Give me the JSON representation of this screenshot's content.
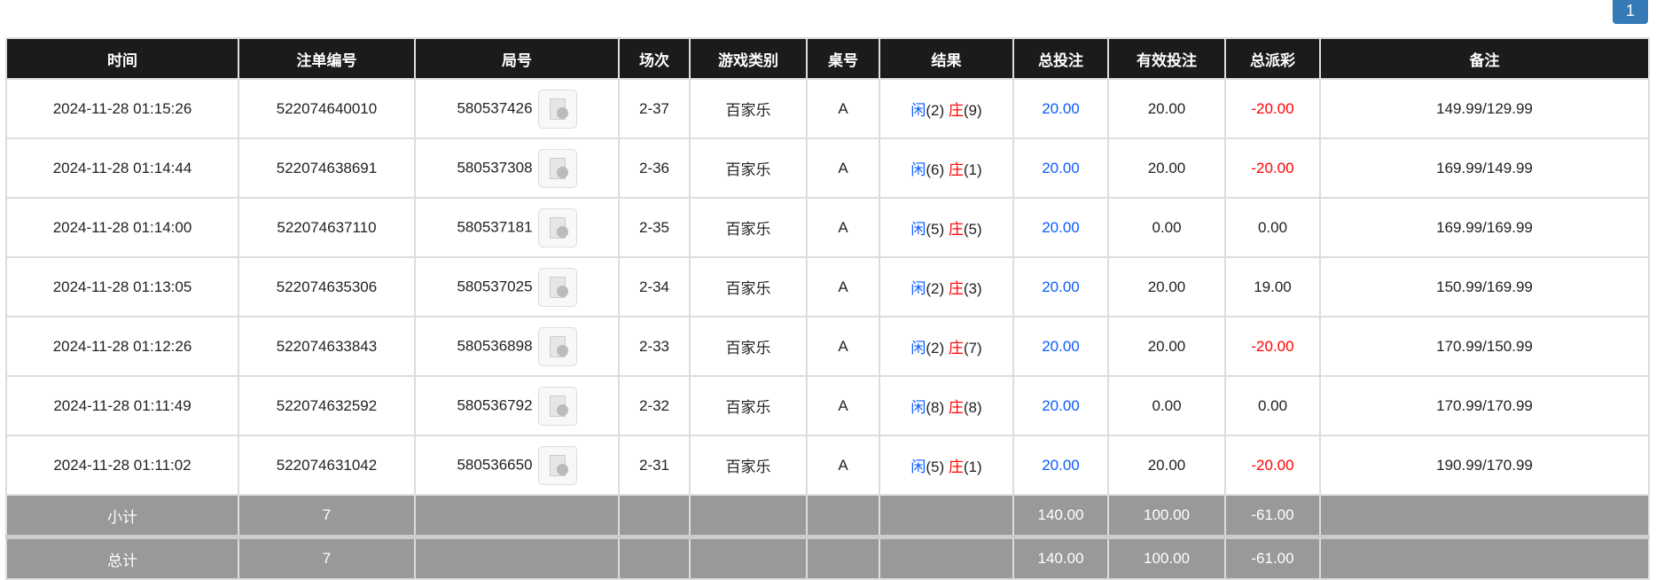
{
  "pagination": {
    "current": "1"
  },
  "columns": [
    "时间",
    "注单编号",
    "局号",
    "场次",
    "游戏类别",
    "桌号",
    "结果",
    "总投注",
    "有效投注",
    "总派彩",
    "备注"
  ],
  "result_labels": {
    "player": "闲",
    "banker": "庄"
  },
  "rows": [
    {
      "time": "2024-11-28 01:15:26",
      "bet_id": "522074640010",
      "round": "580537426",
      "shoe": "2-37",
      "game": "百家乐",
      "table": "A",
      "player": "(2)",
      "banker": "(9)",
      "total_bet": "20.00",
      "valid_bet": "20.00",
      "payout": "-20.00",
      "payout_neg": true,
      "note": "149.99/129.99"
    },
    {
      "time": "2024-11-28 01:14:44",
      "bet_id": "522074638691",
      "round": "580537308",
      "shoe": "2-36",
      "game": "百家乐",
      "table": "A",
      "player": "(6)",
      "banker": "(1)",
      "total_bet": "20.00",
      "valid_bet": "20.00",
      "payout": "-20.00",
      "payout_neg": true,
      "note": "169.99/149.99"
    },
    {
      "time": "2024-11-28 01:14:00",
      "bet_id": "522074637110",
      "round": "580537181",
      "shoe": "2-35",
      "game": "百家乐",
      "table": "A",
      "player": "(5)",
      "banker": "(5)",
      "total_bet": "20.00",
      "valid_bet": "0.00",
      "payout": "0.00",
      "payout_neg": false,
      "note": "169.99/169.99"
    },
    {
      "time": "2024-11-28 01:13:05",
      "bet_id": "522074635306",
      "round": "580537025",
      "shoe": "2-34",
      "game": "百家乐",
      "table": "A",
      "player": "(2)",
      "banker": "(3)",
      "total_bet": "20.00",
      "valid_bet": "20.00",
      "payout": "19.00",
      "payout_neg": false,
      "note": "150.99/169.99"
    },
    {
      "time": "2024-11-28 01:12:26",
      "bet_id": "522074633843",
      "round": "580536898",
      "shoe": "2-33",
      "game": "百家乐",
      "table": "A",
      "player": "(2)",
      "banker": "(7)",
      "total_bet": "20.00",
      "valid_bet": "20.00",
      "payout": "-20.00",
      "payout_neg": true,
      "note": "170.99/150.99"
    },
    {
      "time": "2024-11-28 01:11:49",
      "bet_id": "522074632592",
      "round": "580536792",
      "shoe": "2-32",
      "game": "百家乐",
      "table": "A",
      "player": "(8)",
      "banker": "(8)",
      "total_bet": "20.00",
      "valid_bet": "0.00",
      "payout": "0.00",
      "payout_neg": false,
      "note": "170.99/170.99"
    },
    {
      "time": "2024-11-28 01:11:02",
      "bet_id": "522074631042",
      "round": "580536650",
      "shoe": "2-31",
      "game": "百家乐",
      "table": "A",
      "player": "(5)",
      "banker": "(1)",
      "total_bet": "20.00",
      "valid_bet": "20.00",
      "payout": "-20.00",
      "payout_neg": true,
      "note": "190.99/170.99"
    }
  ],
  "summary": [
    {
      "label": "小计",
      "count": "7",
      "total_bet": "140.00",
      "valid_bet": "100.00",
      "payout": "-61.00"
    },
    {
      "label": "总计",
      "count": "7",
      "total_bet": "140.00",
      "valid_bet": "100.00",
      "payout": "-61.00"
    }
  ],
  "colors": {
    "header_bg": "#1b1b1b",
    "summary_bg": "#999999",
    "positive_blue": "#0a5cff",
    "negative_red": "#ff0000",
    "pager": "#337ab7"
  }
}
